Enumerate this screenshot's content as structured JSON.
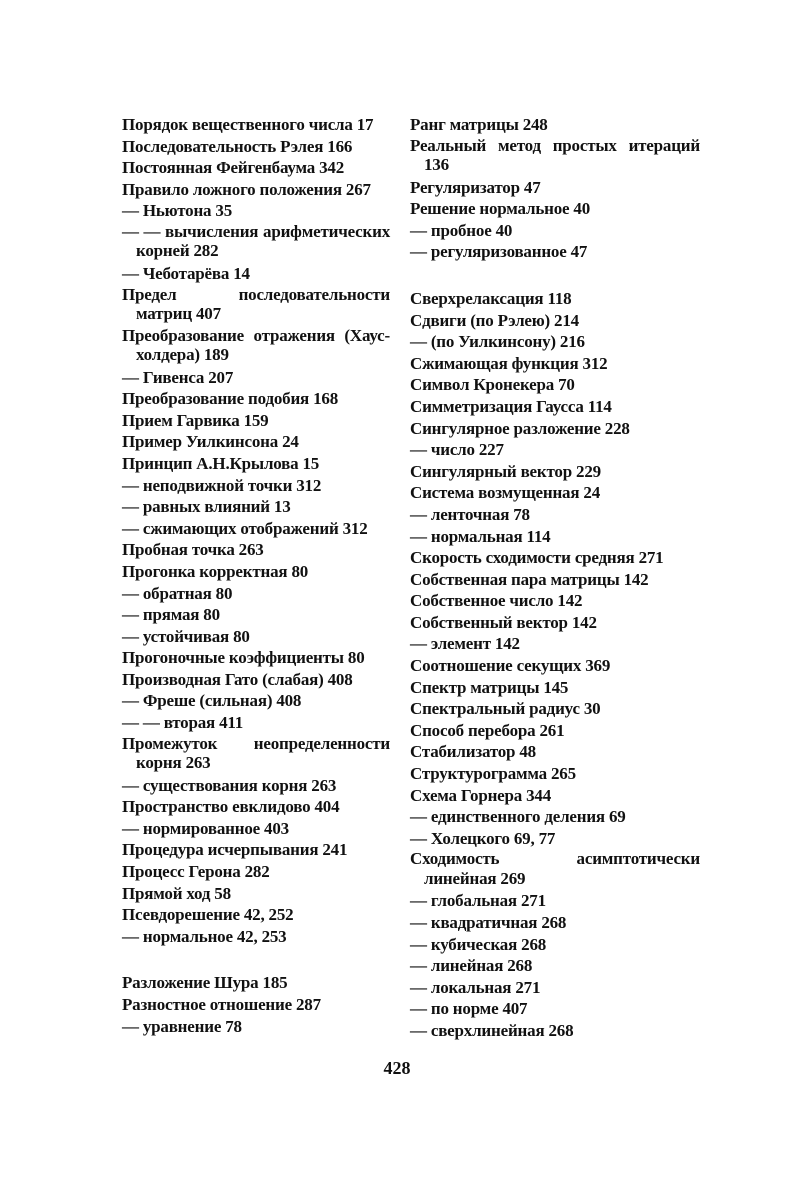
{
  "left_column": [
    {
      "entries": [
        "Порядок вещественного числа 17",
        "Последовательность Рэлея 166",
        "Постоянная Фейгенбаума 342",
        "Правило ложного положения 267",
        "— Ньютона 35",
        "— — вычисления арифметических корней 282",
        "— Чеботарёва 14",
        "Предел последовательности матриц 407",
        "Преобразование отражения (Хаус-холдера) 189",
        "— Гивенса 207",
        "Преобразование подобия 168",
        "Прием Гарвика 159",
        "Пример Уилкинсона 24",
        "Принцип А.Н.Крылова 15",
        "— неподвижной точки 312",
        "— равных влияний 13",
        "— сжимающих отображений 312",
        "Пробная точка 263",
        "Прогонка корректная 80",
        "— обратная 80",
        "— прямая 80",
        "— устойчивая 80",
        "Прогоночные коэффициенты 80",
        "Производная Гато (слабая) 408",
        "— Фреше (сильная) 408",
        "— — вторая 411",
        "Промежуток неопределенности корня 263",
        "— существования корня 263",
        "Пространство евклидово 404",
        "— нормированное 403",
        "Процедура исчерпывания 241",
        "Процесс Герона 282",
        "Прямой ход 58",
        "Псевдорешение 42, 252",
        "— нормальное 42, 253"
      ]
    },
    {
      "entries": [
        "Разложение Шура 185",
        "Разностное отношение 287",
        "— уравнение 78"
      ]
    }
  ],
  "right_column": [
    {
      "entries": [
        "Ранг матрицы 248",
        "Реальный метод простых итераций 136",
        "Регуляризатор 47",
        "Решение нормальное 40",
        "— пробное 40",
        "— регуляризованное 47"
      ]
    },
    {
      "entries": [
        "Сверхрелаксация 118",
        "Сдвиги (по Рэлею) 214",
        "— (по Уилкинсону) 216",
        "Сжимающая функция 312",
        "Символ Кронекера 70",
        "Симметризация Гаусса 114",
        "Сингулярное разложение 228",
        "— число 227",
        "Сингулярный вектор 229",
        "Система возмущенная 24",
        "— ленточная 78",
        "— нормальная 114",
        "Скорость сходимости средняя 271",
        "Собственная пара матрицы 142",
        "Собственное число 142",
        "Собственный вектор 142",
        "— элемент 142",
        "Соотношение секущих 369",
        "Спектр матрицы 145",
        "Спектральный радиус 30",
        "Способ перебора 261",
        "Стабилизатор 48",
        "Структурограмма 265",
        "Схема Горнера 344",
        "— единственного деления 69",
        "— Холецкого 69, 77",
        "Сходимость асимптотически линейная 269",
        "— глобальная 271",
        "— квадратичная 268",
        "— кубическая 268",
        "— линейная 268",
        "— локальная 271",
        "— по норме 407",
        "— сверхлинейная 268"
      ]
    }
  ],
  "page_number": "428"
}
